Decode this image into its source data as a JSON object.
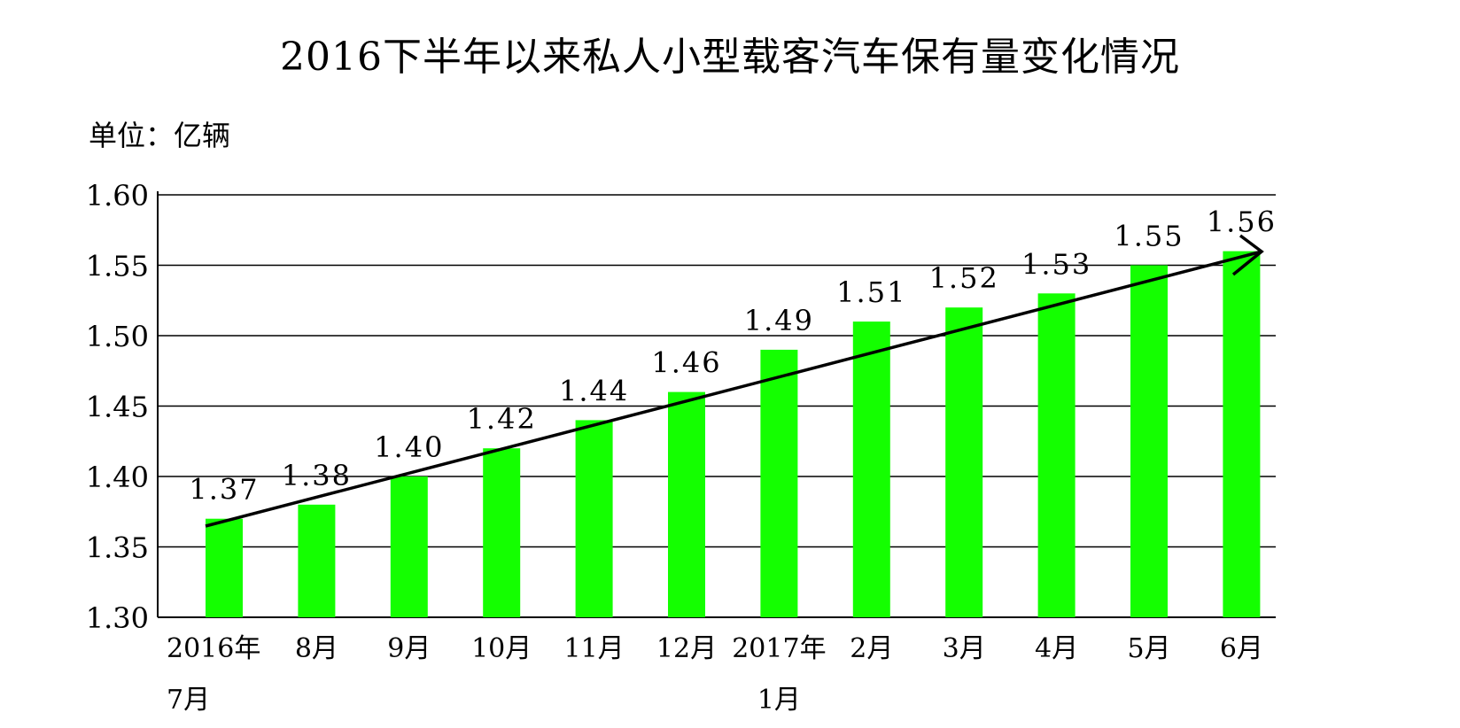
{
  "chart_data": {
    "type": "bar",
    "title": "2016下半年以来私人小型载客汽车保有量变化情况",
    "unit": "单位：亿辆",
    "categories": [
      [
        "2016年",
        "7月"
      ],
      [
        "8月"
      ],
      [
        "9月"
      ],
      [
        "10月"
      ],
      [
        "11月"
      ],
      [
        "12月"
      ],
      [
        "2017年",
        "1月"
      ],
      [
        "2月"
      ],
      [
        "3月"
      ],
      [
        "4月"
      ],
      [
        "5月"
      ],
      [
        "6月"
      ]
    ],
    "values": [
      1.37,
      1.38,
      1.4,
      1.42,
      1.44,
      1.46,
      1.49,
      1.51,
      1.52,
      1.53,
      1.55,
      1.56
    ],
    "data_labels": [
      "1.37",
      "1.38",
      "1.40",
      "1.42",
      "1.44",
      "1.46",
      "1.49",
      "1.51",
      "1.52",
      "1.53",
      "1.55",
      "1.56"
    ],
    "yticks": [
      "1.30",
      "1.35",
      "1.40",
      "1.45",
      "1.50",
      "1.55",
      "1.60"
    ],
    "ylim": [
      1.3,
      1.6
    ],
    "grid": true,
    "legend": "none",
    "trend_arrow": true,
    "bar_color": "#14FF00",
    "grid_color": "#000000"
  }
}
